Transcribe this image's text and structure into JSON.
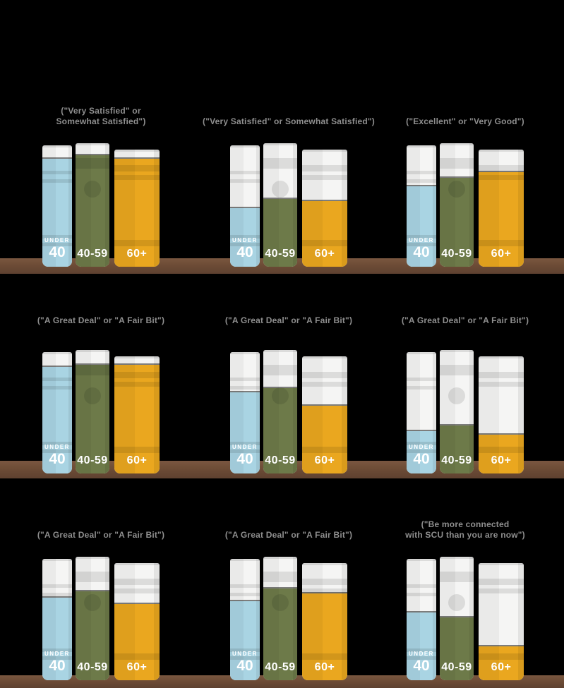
{
  "canvas": {
    "background": "#000000"
  },
  "palette": {
    "book_blue": "#a9d4e3",
    "book_green": "#6d7a49",
    "book_orange": "#eaa71f",
    "book_white": "#f5f5f4",
    "shelf_brown": "#6d4c36",
    "caption_gray": "#8f8f8f",
    "label_white": "#ffffff"
  },
  "age_labels": {
    "under": "UNDER",
    "under_num": "40",
    "mid": "40-59",
    "senior": "60+"
  },
  "chart_data": {
    "type": "bar",
    "description": "Bookshelf infographic: nine panels, each with three book spines (Under 40, 40-59, 60+). The colored portion of each spine encodes the share of respondents; values estimated from fill heights (no numeric labels visible).",
    "age_groups": [
      "UNDER 40",
      "40-59",
      "60+"
    ],
    "unit": "% of book filled (estimated)",
    "legend_position": "none",
    "grid": false,
    "ylim": [
      0,
      100
    ],
    "panels": [
      {
        "row": 1,
        "col": 1,
        "caption": "(\"Very Satisfied\" or\nSomewhat Satisfied\")",
        "values": [
          89,
          90,
          92
        ]
      },
      {
        "row": 1,
        "col": 2,
        "caption": "(\"Very Satisfied\" or Somewhat Satisfied\")",
        "values": [
          48,
          55,
          56
        ]
      },
      {
        "row": 1,
        "col": 3,
        "caption": "(\"Excellent\" or \"Very Good\")",
        "values": [
          66,
          72,
          81
        ]
      },
      {
        "row": 2,
        "col": 1,
        "caption": "(\"A Great Deal\" or \"A Fair Bit\")",
        "values": [
          88,
          88,
          93
        ]
      },
      {
        "row": 2,
        "col": 2,
        "caption": "(\"A Great Deal\" or \"A Fair Bit\")",
        "values": [
          67,
          69,
          58
        ]
      },
      {
        "row": 2,
        "col": 3,
        "caption": "(\"A Great Deal\" or \"A Fair Bit\")",
        "values": [
          35,
          39,
          33
        ]
      },
      {
        "row": 3,
        "col": 1,
        "caption": "(\"A Great Deal\" or \"A Fair Bit\")",
        "values": [
          68,
          72,
          65
        ]
      },
      {
        "row": 3,
        "col": 2,
        "caption": "(\"A Great Deal\" or \"A Fair Bit\")",
        "values": [
          65,
          74,
          74
        ]
      },
      {
        "row": 3,
        "col": 3,
        "caption": "(\"Be more connected\nwith SCU than you are now\")",
        "values": [
          56,
          51,
          29
        ]
      }
    ]
  }
}
